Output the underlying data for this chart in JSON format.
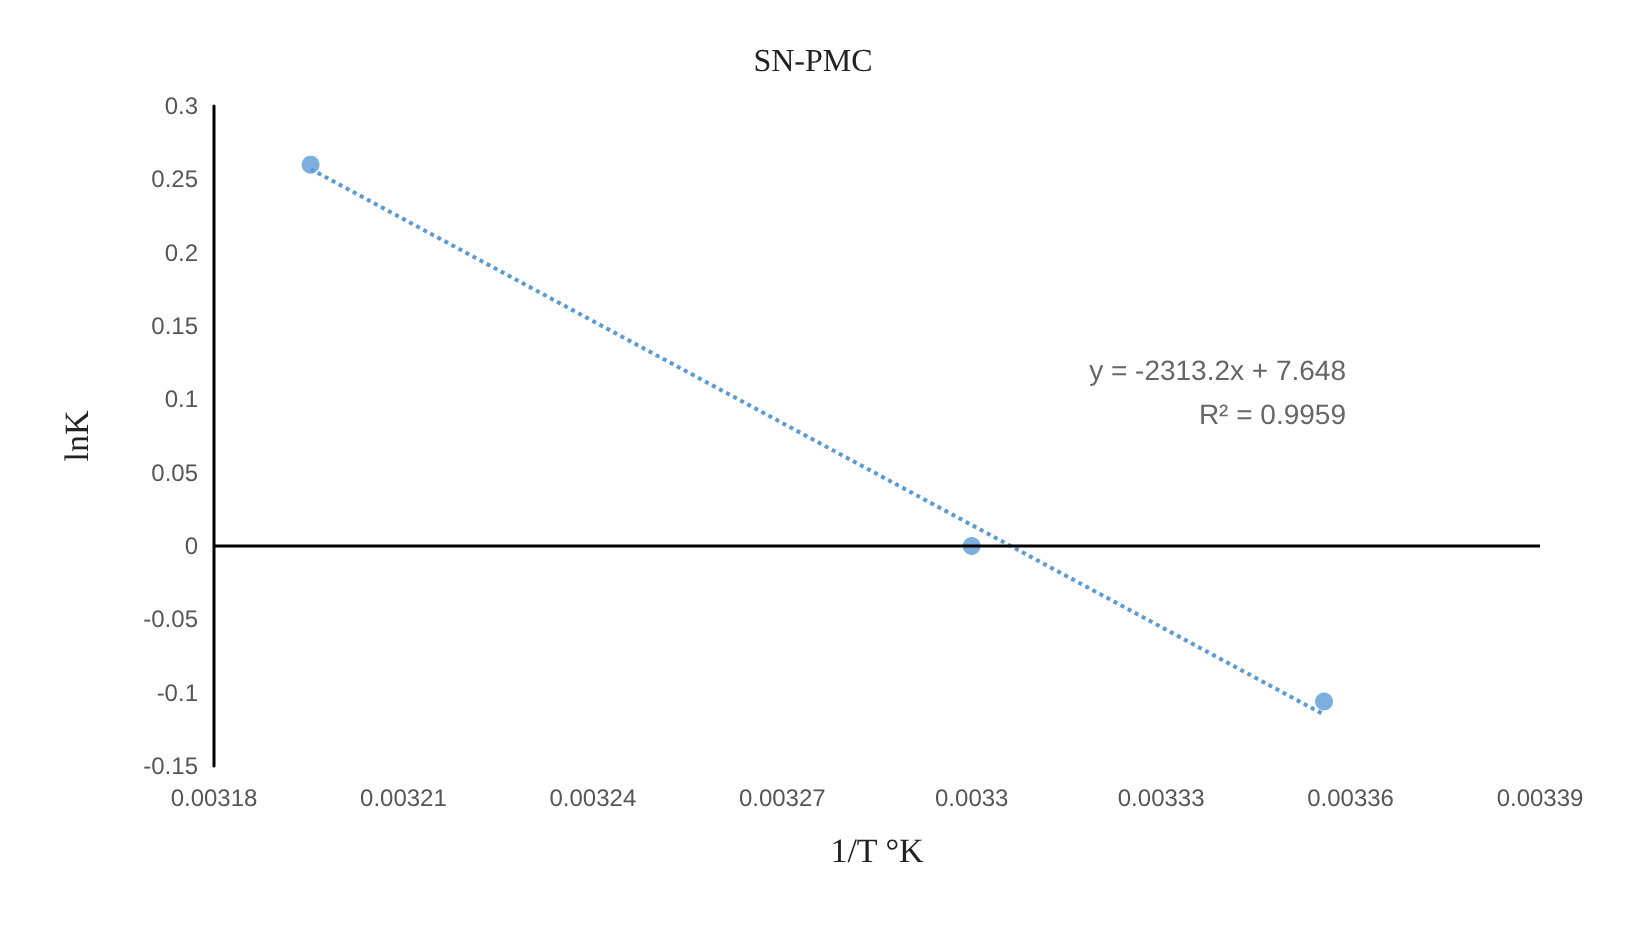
{
  "chart_data": {
    "type": "scatter",
    "title": "SN-PMC",
    "xlabel": "1/T °K",
    "ylabel": "lnK",
    "series": [
      {
        "color": "#5b9bd5",
        "x": [
          0.0031953,
          0.0033,
          0.0033558
        ],
        "values": [
          0.26,
          0,
          -0.106
        ],
        "marker": "circle"
      },
      {
        "type": "line",
        "color": "#5b9bd5",
        "x": [
          0.0031953,
          0.0033558
        ],
        "values": [
          0.257,
          -0.115
        ],
        "line_style": "dotted",
        "marker": "none"
      }
    ],
    "xlim": [
      0.00318,
      0.00339
    ],
    "xticks": [
      0.00318,
      0.00321,
      0.00324,
      0.00327,
      0.0033,
      0.00333,
      0.00336,
      0.00339
    ],
    "ylim": [
      -0.15,
      0.3
    ],
    "yticks": [
      -0.15,
      -0.1,
      -0.05,
      0,
      0.05,
      0.1,
      0.15,
      0.2,
      0.25,
      0.3
    ],
    "annotations": [
      "y = -2313.2x + 7.648",
      "R² = 0.9959"
    ],
    "ref_lines": [
      {
        "axis": "y",
        "value": 0,
        "color": "#000000",
        "line_style": "solid"
      }
    ],
    "grid": false
  }
}
